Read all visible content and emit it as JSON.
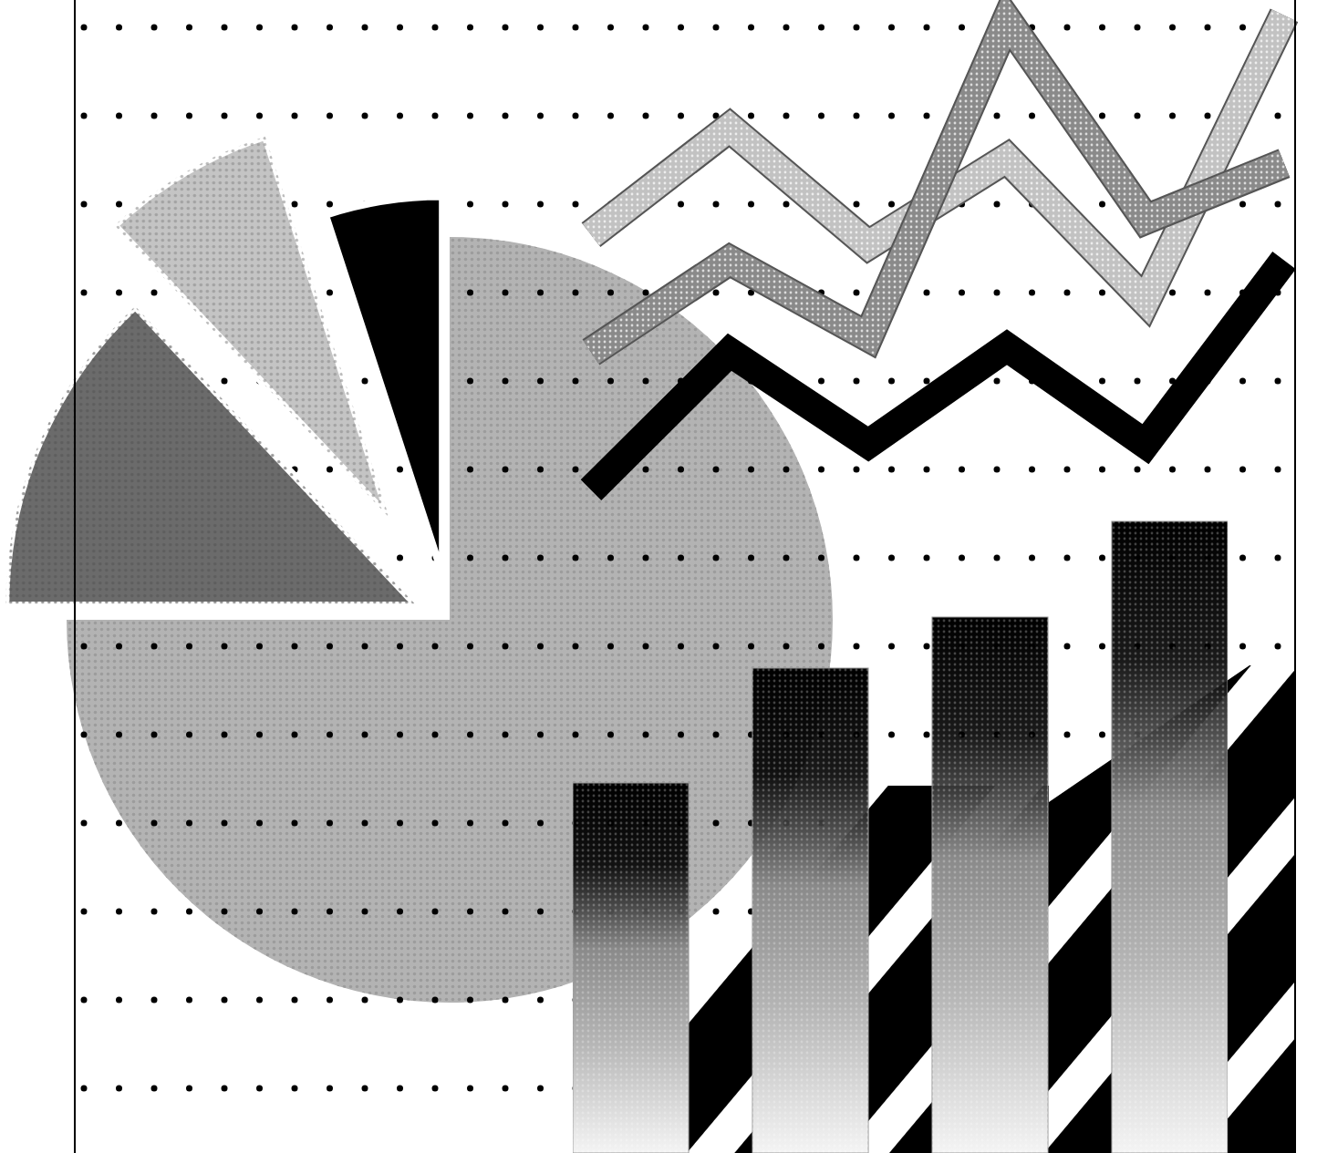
{
  "chart_data": [
    {
      "type": "pie",
      "values": [
        75,
        13,
        7,
        5
      ],
      "colors": [
        "#b3b3b3",
        "#6b6b6b",
        "#c4c4c4",
        "#000000"
      ],
      "tick_labels": false
    },
    {
      "type": "line",
      "categories": [
        null,
        null,
        null,
        null,
        null,
        null
      ],
      "series": [
        {
          "color": "#c2c2c2",
          "values": [
            54,
            75,
            52,
            69,
            41,
            97
          ]
        },
        {
          "color": "#8a8a8a",
          "values": [
            31,
            49,
            34,
            96,
            57,
            68
          ]
        },
        {
          "color": "#000000",
          "values": [
            4,
            31,
            13,
            32,
            13,
            49
          ]
        }
      ],
      "ylim": [
        0,
        100
      ],
      "tick_labels": false
    },
    {
      "type": "bar",
      "categories": [
        null,
        null,
        null,
        null
      ],
      "values": [
        58,
        76,
        84,
        99
      ],
      "color": "#000000",
      "ylim": [
        0,
        100
      ],
      "tick_labels": false
    }
  ]
}
